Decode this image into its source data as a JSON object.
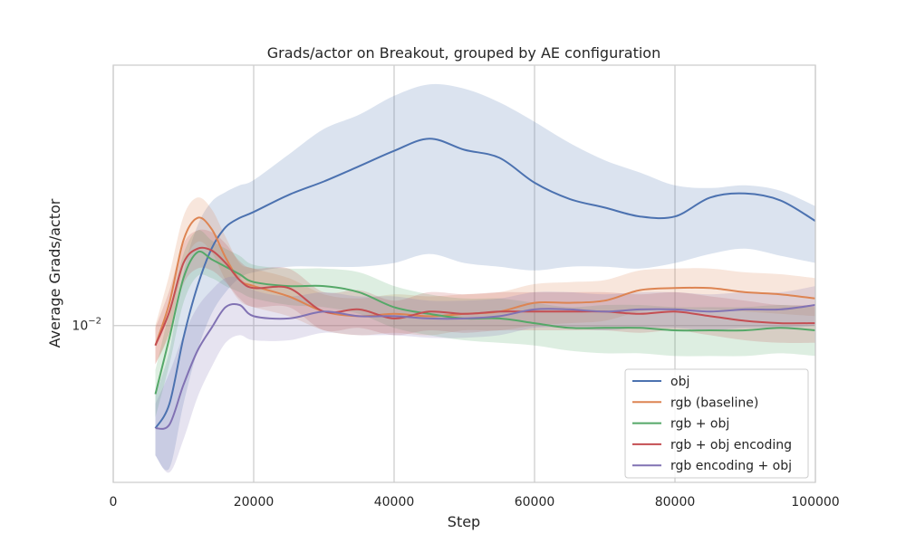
{
  "chart_data": {
    "type": "line",
    "title": "Grads/actor on Breakout, grouped by AE configuration",
    "xlabel": "Step",
    "ylabel": "Average Grads/actor",
    "x_ticks": [
      0,
      20000,
      40000,
      60000,
      80000,
      100000
    ],
    "x_tick_labels": [
      "0",
      "20000",
      "40000",
      "60000",
      "80000",
      "100000"
    ],
    "y_ticks": [
      0.01
    ],
    "y_tick_labels": [
      "10",
      "−2"
    ],
    "xlim": [
      0,
      100000
    ],
    "ylim": [
      0.00518,
      0.0298
    ],
    "yscale": "log",
    "grid": true,
    "legend": "bottom-right",
    "x": [
      6000,
      8000,
      10000,
      12000,
      14000,
      16000,
      18000,
      20000,
      25000,
      30000,
      35000,
      40000,
      45000,
      50000,
      55000,
      60000,
      65000,
      70000,
      75000,
      80000,
      85000,
      90000,
      95000,
      100000
    ],
    "series": [
      {
        "name": "obj",
        "color": "#4c72b0",
        "mean": [
          0.0065,
          0.0072,
          0.0095,
          0.0118,
          0.0138,
          0.0151,
          0.0157,
          0.0161,
          0.0173,
          0.0183,
          0.0195,
          0.0208,
          0.0219,
          0.0209,
          0.0202,
          0.0182,
          0.017,
          0.0164,
          0.0158,
          0.0158,
          0.0171,
          0.0174,
          0.0169,
          0.0155
        ],
        "lower": [
          0.0058,
          0.0055,
          0.0072,
          0.009,
          0.0105,
          0.0115,
          0.0122,
          0.0125,
          0.0128,
          0.0128,
          0.0128,
          0.013,
          0.0135,
          0.013,
          0.0128,
          0.0126,
          0.0128,
          0.0128,
          0.0127,
          0.013,
          0.0135,
          0.0138,
          0.0134,
          0.013
        ],
        "upper": [
          0.0075,
          0.009,
          0.0125,
          0.0152,
          0.0168,
          0.0175,
          0.018,
          0.0184,
          0.0205,
          0.0228,
          0.0242,
          0.0262,
          0.0275,
          0.027,
          0.0255,
          0.0235,
          0.0215,
          0.02,
          0.019,
          0.018,
          0.0178,
          0.018,
          0.0176,
          0.0165
        ]
      },
      {
        "name": "rgb (baseline)",
        "color": "#dd8452",
        "mean": [
          0.0092,
          0.011,
          0.0143,
          0.0157,
          0.015,
          0.0133,
          0.0121,
          0.0118,
          0.0113,
          0.0106,
          0.0104,
          0.0105,
          0.0104,
          0.0105,
          0.0106,
          0.011,
          0.011,
          0.0111,
          0.0116,
          0.0117,
          0.0117,
          0.0115,
          0.0114,
          0.0112
        ],
        "lower": [
          0.0085,
          0.0097,
          0.0128,
          0.0142,
          0.0136,
          0.0121,
          0.0111,
          0.0108,
          0.0104,
          0.0098,
          0.0096,
          0.0097,
          0.0096,
          0.0098,
          0.0098,
          0.01,
          0.0101,
          0.0102,
          0.0106,
          0.0107,
          0.0107,
          0.0106,
          0.0105,
          0.0104
        ],
        "upper": [
          0.01,
          0.0124,
          0.0158,
          0.0171,
          0.0163,
          0.0145,
          0.013,
          0.0127,
          0.0122,
          0.0114,
          0.0112,
          0.0114,
          0.0113,
          0.0114,
          0.0115,
          0.0119,
          0.012,
          0.0121,
          0.0126,
          0.0127,
          0.0127,
          0.0125,
          0.0124,
          0.0122
        ]
      },
      {
        "name": "rgb + obj",
        "color": "#55a868",
        "mean": [
          0.0075,
          0.0095,
          0.0122,
          0.0136,
          0.0132,
          0.0128,
          0.0124,
          0.012,
          0.0118,
          0.0118,
          0.0115,
          0.0108,
          0.0105,
          0.0103,
          0.0103,
          0.0101,
          0.0099,
          0.0099,
          0.0099,
          0.0098,
          0.0098,
          0.0098,
          0.0099,
          0.0098
        ],
        "lower": [
          0.0068,
          0.0085,
          0.011,
          0.0123,
          0.0122,
          0.0118,
          0.0115,
          0.0112,
          0.0109,
          0.0108,
          0.0105,
          0.0099,
          0.0096,
          0.0094,
          0.0093,
          0.0092,
          0.009,
          0.0089,
          0.0089,
          0.0088,
          0.0088,
          0.0088,
          0.0089,
          0.0088
        ],
        "upper": [
          0.0083,
          0.0106,
          0.0135,
          0.0149,
          0.0143,
          0.0138,
          0.0134,
          0.0129,
          0.0127,
          0.0127,
          0.0125,
          0.0118,
          0.0114,
          0.0112,
          0.0112,
          0.011,
          0.0108,
          0.0109,
          0.0109,
          0.0108,
          0.0108,
          0.0108,
          0.0109,
          0.0108
        ]
      },
      {
        "name": "rgb + obj encoding",
        "color": "#c44e52",
        "mean": [
          0.0092,
          0.0106,
          0.013,
          0.0138,
          0.0137,
          0.013,
          0.0121,
          0.0117,
          0.0117,
          0.0106,
          0.0107,
          0.0103,
          0.0106,
          0.0105,
          0.0106,
          0.0106,
          0.0106,
          0.0106,
          0.0105,
          0.0106,
          0.0104,
          0.0102,
          0.0101,
          0.0101
        ],
        "lower": [
          0.0085,
          0.0097,
          0.0119,
          0.0127,
          0.0126,
          0.012,
          0.0112,
          0.0108,
          0.0108,
          0.0098,
          0.0099,
          0.0096,
          0.0098,
          0.0097,
          0.0098,
          0.0098,
          0.0098,
          0.0098,
          0.0097,
          0.0098,
          0.0096,
          0.0094,
          0.0093,
          0.0093
        ],
        "upper": [
          0.0099,
          0.0116,
          0.0141,
          0.0149,
          0.0148,
          0.0141,
          0.0131,
          0.0127,
          0.0127,
          0.0115,
          0.0116,
          0.0111,
          0.0115,
          0.0114,
          0.0115,
          0.0115,
          0.0115,
          0.0115,
          0.0114,
          0.0115,
          0.0113,
          0.0111,
          0.0109,
          0.0109
        ]
      },
      {
        "name": "rgb encoding + obj",
        "color": "#8172b3",
        "mean": [
          0.0065,
          0.0066,
          0.0078,
          0.009,
          0.0099,
          0.0108,
          0.0109,
          0.0104,
          0.0103,
          0.0106,
          0.0104,
          0.0104,
          0.0103,
          0.0103,
          0.0104,
          0.0107,
          0.0107,
          0.0106,
          0.0107,
          0.0107,
          0.0106,
          0.0107,
          0.0107,
          0.0109
        ],
        "lower": [
          0.0058,
          0.0054,
          0.0062,
          0.0074,
          0.0084,
          0.0093,
          0.0096,
          0.0094,
          0.0094,
          0.0097,
          0.0096,
          0.0096,
          0.0095,
          0.0095,
          0.0096,
          0.0099,
          0.0099,
          0.0098,
          0.0099,
          0.0099,
          0.0098,
          0.0099,
          0.0099,
          0.01
        ],
        "upper": [
          0.0072,
          0.0082,
          0.0096,
          0.0108,
          0.0116,
          0.0122,
          0.0122,
          0.0116,
          0.0113,
          0.0115,
          0.0113,
          0.0113,
          0.0111,
          0.0111,
          0.0112,
          0.0115,
          0.0115,
          0.0114,
          0.0115,
          0.0115,
          0.0114,
          0.0115,
          0.0115,
          0.0118
        ]
      }
    ]
  }
}
